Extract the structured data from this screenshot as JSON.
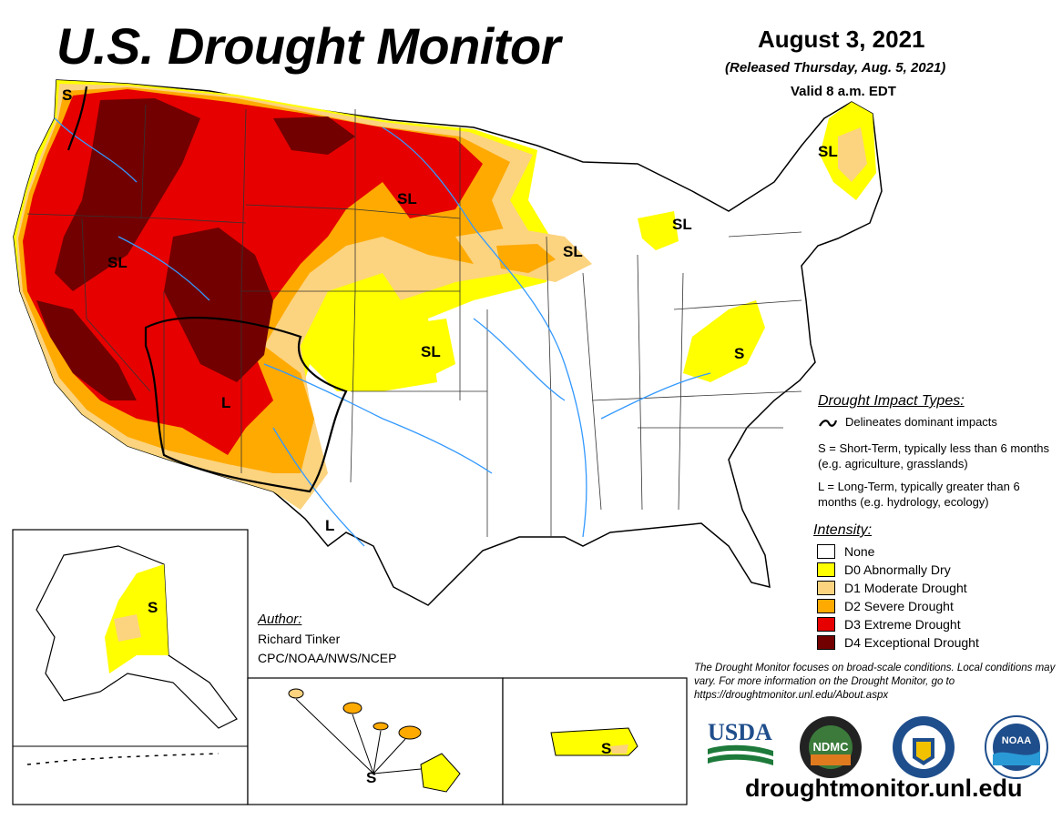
{
  "header": {
    "title": "U.S. Drought Monitor",
    "date": "August 3, 2021",
    "released": "(Released Thursday, Aug. 5, 2021)",
    "valid": "Valid 8 a.m. EDT"
  },
  "impact": {
    "title": "Drought Impact Types:",
    "delineates": "Delineates dominant impacts",
    "s_def": "S = Short-Term, typically less than 6 months (e.g. agriculture, grasslands)",
    "l_def": "L = Long-Term, typically greater than 6 months (e.g. hydrology, ecology)"
  },
  "intensity": {
    "title": "Intensity:",
    "items": [
      {
        "label": "None",
        "color": "#ffffff"
      },
      {
        "label": "D0 Abnormally Dry",
        "color": "#ffff00"
      },
      {
        "label": "D1 Moderate Drought",
        "color": "#fcd37f"
      },
      {
        "label": "D2 Severe Drought",
        "color": "#ffaa00"
      },
      {
        "label": "D3 Extreme Drought",
        "color": "#e60000"
      },
      {
        "label": "D4 Exceptional Drought",
        "color": "#730000"
      }
    ]
  },
  "map_labels": {
    "sl_west": "SL",
    "s_nw": "S",
    "sl_nplains": "SL",
    "sl_mn": "SL",
    "sl_mi": "SL",
    "sl_ne": "SL",
    "sl_plains": "SL",
    "l_sw": "L",
    "l_tx": "L",
    "s_va": "S",
    "s_ak": "S",
    "s_hi": "S",
    "s_pr": "S"
  },
  "author": {
    "title": "Author:",
    "name": "Richard Tinker",
    "org": "CPC/NOAA/NWS/NCEP"
  },
  "note": "The Drought Monitor focuses on broad-scale conditions. Local conditions may vary. For more information on the Drought Monitor, go to https://droughtmonitor.unl.edu/About.aspx",
  "url": "droughtmonitor.unl.edu",
  "logos": {
    "usda": "USDA",
    "ndmc": "NDMC",
    "noaa": "NOAA"
  }
}
